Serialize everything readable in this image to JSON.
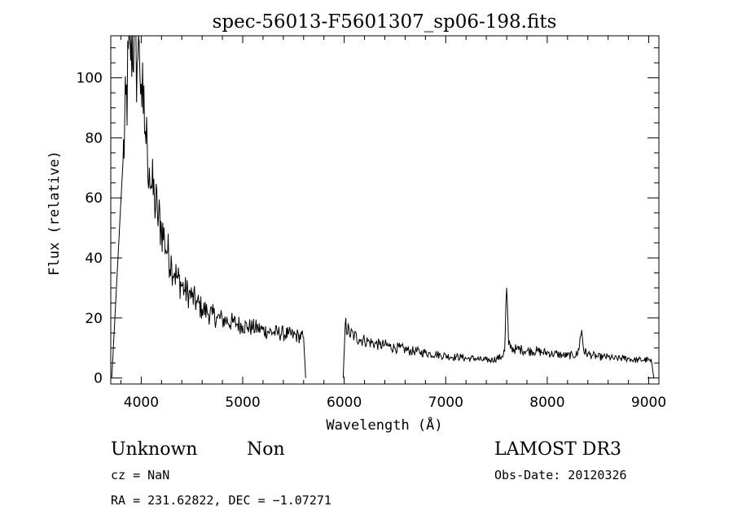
{
  "chart_data": {
    "type": "line",
    "title": "spec-56013-F5601307_sp06-198.fits",
    "xlabel": "Wavelength (Å)",
    "ylabel": "Flux (relative)",
    "xlim": [
      3700,
      9100
    ],
    "ylim": [
      -2,
      114
    ],
    "xticks": [
      4000,
      5000,
      6000,
      7000,
      8000,
      9000
    ],
    "yticks": [
      0,
      20,
      40,
      60,
      80,
      100
    ],
    "xtick_labels": [
      "4000",
      "5000",
      "6000",
      "7000",
      "8000",
      "9000"
    ],
    "ytick_labels": [
      "0",
      "20",
      "40",
      "60",
      "80",
      "100"
    ],
    "grid": false,
    "line_color": "#000000",
    "series": [
      {
        "x": [
          3710,
          3820,
          3890,
          3930,
          3960,
          3980,
          4000,
          4020,
          4040,
          4060,
          4080,
          4100,
          4130,
          4160,
          4200,
          4230,
          4260,
          4300,
          4330,
          4360,
          4400,
          4430,
          4470,
          4500,
          4550,
          4600,
          4650,
          4700,
          4750,
          4800,
          4850,
          4900,
          4950,
          5000,
          5050,
          5100,
          5150,
          5200,
          5250,
          5300,
          5350,
          5400,
          5450,
          5500,
          5550,
          5600,
          5620
        ],
        "y": [
          0,
          72,
          112,
          114,
          105,
          112,
          98,
          88,
          82,
          76,
          70,
          64,
          60,
          55,
          50,
          46,
          42,
          38,
          35,
          33,
          31,
          29,
          28,
          27,
          25,
          23,
          22,
          21,
          20,
          19.5,
          19,
          18.5,
          18,
          17.5,
          17,
          16.8,
          16.5,
          16,
          15.5,
          15.2,
          15,
          14.8,
          14.5,
          14.2,
          14,
          13.5,
          0
        ]
      },
      {
        "x": [
          5990,
          6010,
          6050,
          6100,
          6150,
          6200,
          6250,
          6300,
          6350,
          6400,
          6450,
          6500,
          6550,
          6600,
          6650,
          6700,
          6750,
          6800,
          6850,
          6900,
          6950,
          7000,
          7050,
          7100,
          7150,
          7200,
          7250,
          7300,
          7350,
          7400,
          7450,
          7500,
          7550,
          7580,
          7600,
          7620,
          7650,
          7700,
          7750,
          7800,
          7850,
          7900,
          7950,
          8000,
          8050,
          8100,
          8150,
          8200,
          8250,
          8300,
          8340,
          8360,
          8400,
          8450,
          8500,
          8550,
          8600,
          8650,
          8700,
          8750,
          8800,
          8850,
          8900,
          8950,
          9000,
          9030,
          9050
        ],
        "y": [
          0,
          18,
          15,
          14,
          13,
          12.5,
          12,
          11.5,
          11,
          11,
          10.5,
          10,
          10,
          9.5,
          9,
          9,
          8.5,
          8.5,
          8,
          8,
          7.5,
          7.5,
          7,
          7,
          7,
          6.5,
          6.5,
          6.5,
          6,
          6,
          6,
          6.5,
          7,
          9,
          30,
          11,
          10,
          9.5,
          9.5,
          9,
          9,
          9,
          8.5,
          8.5,
          8,
          8,
          7.5,
          7.5,
          7.5,
          8,
          16,
          9,
          8,
          7.5,
          7,
          7,
          7,
          6.5,
          6.5,
          6.5,
          6.5,
          6,
          6,
          6,
          6,
          5,
          0
        ]
      }
    ]
  },
  "footer": {
    "object_class": "Unknown",
    "object_subclass": "Non",
    "survey": "LAMOST DR3",
    "cz": "cz = NaN",
    "obs_date": "Obs-Date: 20120326",
    "radec": "RA = 231.62822, DEC =  −1.07271"
  }
}
